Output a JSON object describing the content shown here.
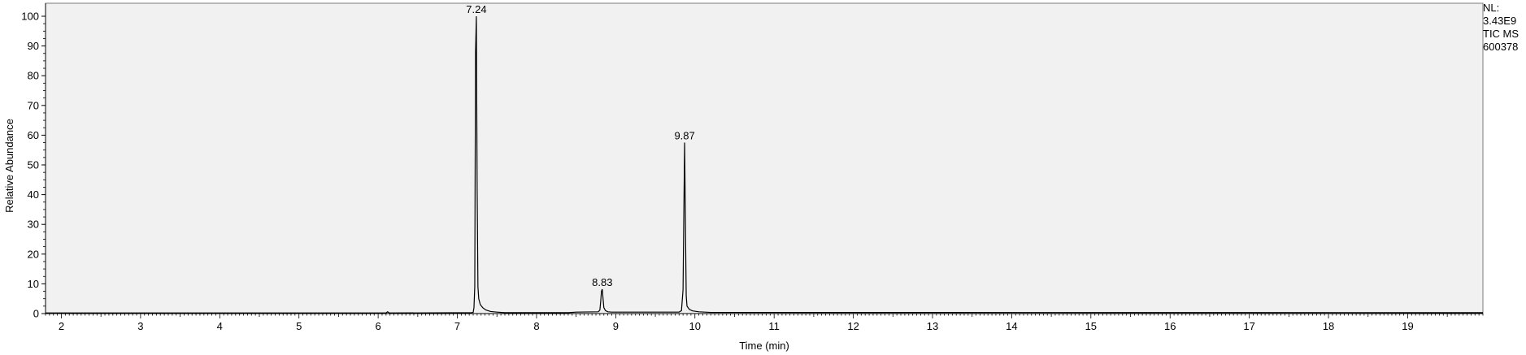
{
  "chart_data": {
    "type": "line",
    "title": "",
    "xlabel": "Time (min)",
    "ylabel": "Relative Abundance",
    "xlim": [
      1.8,
      19.95
    ],
    "ylim": [
      0,
      100
    ],
    "x_ticks": [
      "2",
      "3",
      "4",
      "5",
      "6",
      "7",
      "8",
      "9",
      "10",
      "11",
      "12",
      "13",
      "14",
      "15",
      "16",
      "17",
      "18",
      "19"
    ],
    "y_ticks": [
      "0",
      "10",
      "20",
      "30",
      "40",
      "50",
      "60",
      "70",
      "80",
      "90",
      "100"
    ],
    "grid": false,
    "legend": "none",
    "plot_background": "#f1f1f1",
    "line_color": "#000000",
    "peaks": [
      {
        "label": "7.24",
        "x": 7.24,
        "y": 100
      },
      {
        "label": "8.83",
        "x": 8.83,
        "y": 8.2
      },
      {
        "label": "9.87",
        "x": 9.87,
        "y": 57.5
      }
    ],
    "series": [
      {
        "x": [
          1.8,
          6.1,
          6.12,
          6.14,
          7.18,
          7.2,
          7.21,
          7.22,
          7.23,
          7.24,
          7.25,
          7.26,
          7.27,
          7.29,
          7.32,
          7.36,
          7.42,
          7.5,
          7.6,
          8.4,
          8.5,
          8.78,
          8.8,
          8.81,
          8.82,
          8.83,
          8.84,
          8.85,
          8.87,
          8.9,
          8.95,
          9.8,
          9.83,
          9.85,
          9.86,
          9.87,
          9.88,
          9.89,
          9.9,
          9.93,
          9.97,
          10.05,
          10.2,
          19.95
        ],
        "y": [
          0.2,
          0.2,
          0.6,
          0.2,
          0.3,
          0.4,
          2,
          9,
          88,
          100,
          42,
          9,
          5,
          3,
          2,
          1.2,
          0.7,
          0.5,
          0.3,
          0.3,
          0.5,
          0.6,
          1.2,
          4,
          7.5,
          8.2,
          5,
          2,
          1,
          0.6,
          0.5,
          0.5,
          1,
          8,
          34,
          57.5,
          30,
          6,
          2.5,
          1.4,
          0.9,
          0.6,
          0.4,
          0.3
        ]
      }
    ]
  },
  "normalization": {
    "lines": [
      "NL:",
      "3.43E9",
      "TIC  MS",
      "600378"
    ]
  }
}
